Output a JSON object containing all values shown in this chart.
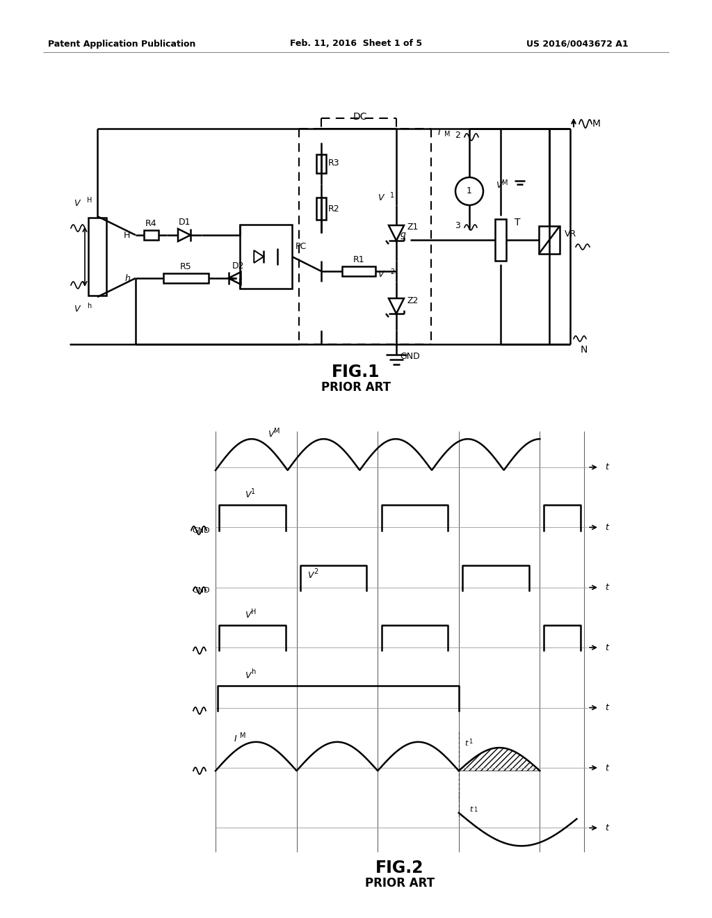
{
  "bg_color": "#ffffff",
  "header_left": "Patent Application Publication",
  "header_mid": "Feb. 11, 2016  Sheet 1 of 5",
  "header_right": "US 2016/0043672 A1",
  "fig1_title": "FIG.1",
  "fig1_subtitle": "PRIOR ART",
  "fig2_title": "FIG.2",
  "fig2_subtitle": "PRIOR ART",
  "line_color": "#000000"
}
